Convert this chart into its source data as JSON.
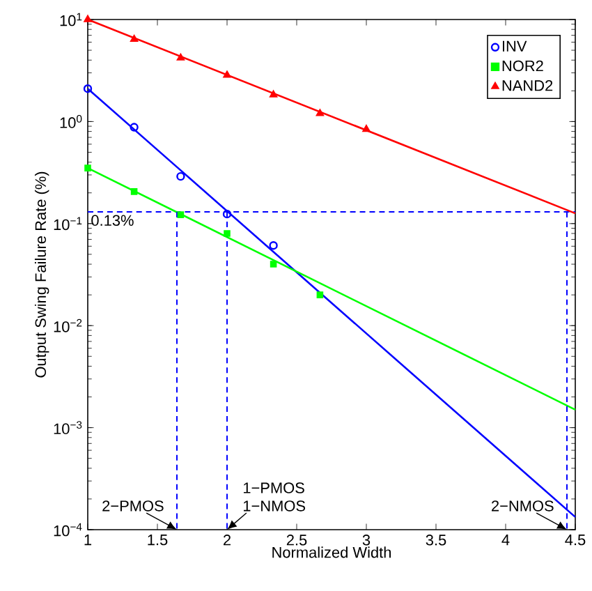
{
  "chart_data": {
    "type": "scatter",
    "xlabel": "Normalized Width",
    "ylabel": "Output Swing Failure Rate (%)",
    "log": "y",
    "grid": false,
    "legend": "top right",
    "xlim": [
      1,
      4.5
    ],
    "ylim": [
      0.0001,
      10
    ],
    "xticks": [
      1,
      1.5,
      2,
      2.5,
      3,
      3.5,
      4,
      4.5
    ],
    "yticks": [
      {
        "value": 0.0001,
        "label": "10$^{−4}$"
      },
      {
        "value": 0.001,
        "label": "10$^{−3}$"
      },
      {
        "value": 0.01,
        "label": "10$^{−2}$"
      },
      {
        "value": 0.1,
        "label": "10$^{−1}$"
      },
      {
        "value": 1,
        "label": "10$^{0}$"
      },
      {
        "value": 10,
        "label": "10$^{1}$"
      }
    ],
    "series": [
      {
        "name": "INV",
        "marker": "circle",
        "color": "#0000ff",
        "x": [
          1,
          1.333,
          1.667,
          2,
          2.333
        ],
        "values": [
          2.1,
          0.88,
          0.29,
          0.124,
          0.061
        ]
      },
      {
        "name": "NOR2",
        "marker": "square",
        "color": "#00ff00",
        "x": [
          1,
          1.333,
          1.667,
          2,
          2.333,
          2.667
        ],
        "values": [
          0.35,
          0.206,
          0.122,
          0.08,
          0.04,
          0.02
        ]
      },
      {
        "name": "NAND2",
        "marker": "triangle",
        "color": "#ff0000",
        "x": [
          1,
          1.333,
          1.667,
          2,
          2.333,
          2.667,
          3
        ],
        "values": [
          10,
          6.4,
          4.2,
          2.85,
          1.83,
          1.2,
          0.84
        ]
      },
      {
        "type": "line",
        "color": "#0000ff",
        "line_style": "solid",
        "x": [
          1,
          4.5
        ],
        "values": [
          2.1,
          0.000133
        ]
      },
      {
        "type": "line",
        "color": "#00ff00",
        "line_style": "solid",
        "x": [
          1,
          4.5
        ],
        "values": [
          0.35,
          0.0015
        ]
      },
      {
        "type": "line",
        "color": "#ff0000",
        "line_style": "solid",
        "x": [
          1,
          4.5
        ],
        "values": [
          10,
          0.126
        ]
      },
      {
        "type": "line",
        "color": "#0000ff",
        "line_style": "dashed",
        "x": [
          1.64,
          1.64
        ],
        "values": [
          0.13,
          0.0001
        ]
      },
      {
        "type": "line",
        "color": "#0000ff",
        "line_style": "dashed",
        "x": [
          2,
          2
        ],
        "values": [
          0.13,
          0.0001
        ]
      },
      {
        "type": "line",
        "color": "#0000ff",
        "line_style": "dashed",
        "x": [
          4.44,
          4.44
        ],
        "values": [
          0.13,
          0.0001
        ]
      }
    ],
    "ref_lines": [
      {
        "axis": "y",
        "value": 0.13,
        "label": "0.13%",
        "color": "#0000ff",
        "line_style": "dashed"
      }
    ],
    "annotations": [
      {
        "text": "2−PMOS",
        "x": 1.64,
        "y": 0.0001
      },
      {
        "text": "1−PMOS",
        "x": 2,
        "y": 0.0001
      },
      {
        "text": "1−NMOS",
        "x": 2,
        "y": 0.0001
      },
      {
        "text": "2−NMOS",
        "x": 4.44,
        "y": 0.0001
      }
    ]
  }
}
